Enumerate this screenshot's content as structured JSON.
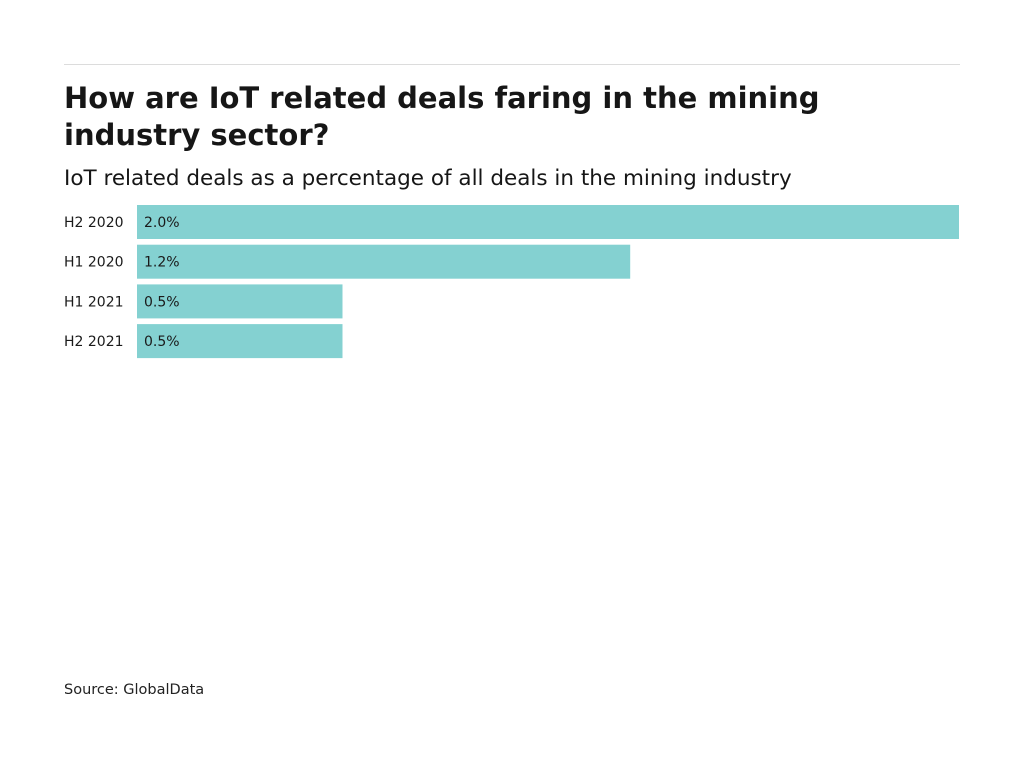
{
  "header": {
    "title": "How are IoT related deals faring in the mining industry sector?",
    "subtitle": "IoT related deals as a percentage of all deals in the mining industry"
  },
  "footer": {
    "source": "Source: GlobalData"
  },
  "colors": {
    "bar": "#84d1d1",
    "text": "#1a1a1a"
  },
  "chart_data": {
    "type": "bar",
    "orientation": "horizontal",
    "categories": [
      "H2 2020",
      "H1 2020",
      "H1 2021",
      "H2 2021"
    ],
    "values": [
      2.0,
      1.2,
      0.5,
      0.5
    ],
    "value_labels": [
      "2.0%",
      "1.2%",
      "0.5%",
      "0.5%"
    ],
    "title": "How are IoT related deals faring in the mining industry sector?",
    "subtitle": "IoT related deals as a percentage of all deals in the mining industry",
    "xlabel": "",
    "ylabel": "",
    "xlim": [
      0,
      2.0
    ],
    "grid": false,
    "legend": "none"
  }
}
